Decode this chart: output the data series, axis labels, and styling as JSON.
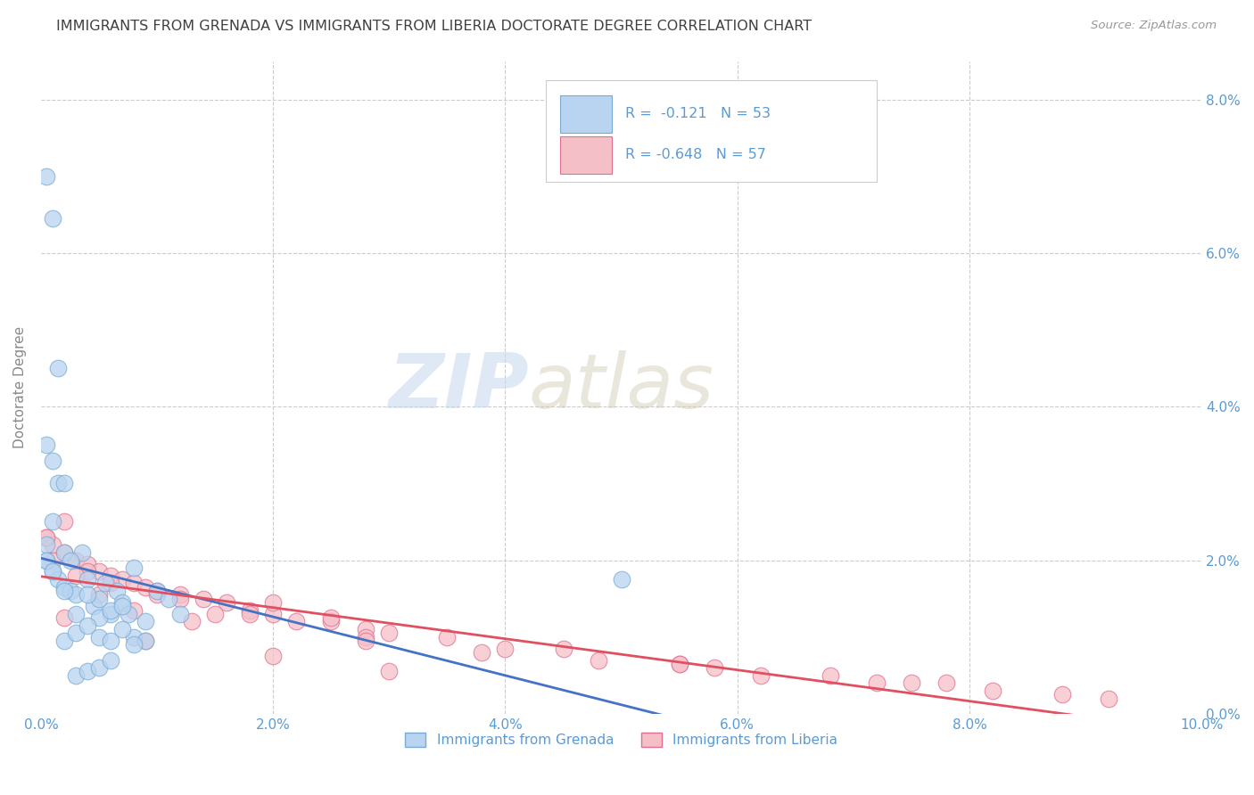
{
  "title": "IMMIGRANTS FROM GRENADA VS IMMIGRANTS FROM LIBERIA DOCTORATE DEGREE CORRELATION CHART",
  "source": "Source: ZipAtlas.com",
  "ylabel": "Doctorate Degree",
  "xlim": [
    0.0,
    0.1
  ],
  "ylim": [
    0.0,
    0.085
  ],
  "xticks": [
    0.0,
    0.02,
    0.04,
    0.06,
    0.08,
    0.1
  ],
  "yticks": [
    0.0,
    0.02,
    0.04,
    0.06,
    0.08
  ],
  "xticklabels": [
    "0.0%",
    "2.0%",
    "4.0%",
    "6.0%",
    "8.0%",
    "10.0%"
  ],
  "yticklabels_right": [
    "0.0%",
    "2.0%",
    "4.0%",
    "6.0%",
    "8.0%"
  ],
  "series_grenada": {
    "name": "Immigrants from Grenada",
    "color": "#b8d4f0",
    "edge_color": "#7aaad4",
    "R": -0.121,
    "N": 53
  },
  "series_liberia": {
    "name": "Immigrants from Liberia",
    "color": "#f5bfc8",
    "edge_color": "#e07090",
    "R": -0.648,
    "N": 57
  },
  "watermark_zip": "ZIP",
  "watermark_atlas": "atlas",
  "background_color": "#ffffff",
  "grid_color": "#cccccc",
  "tick_color": "#5b9bd5",
  "title_color": "#404040",
  "title_fontsize": 11.5,
  "axis_label_color": "#888888",
  "trend_line_grenada_color": "#4472c4",
  "trend_line_liberia_color": "#e05060",
  "trend_ext_color": "#bbbbbb"
}
